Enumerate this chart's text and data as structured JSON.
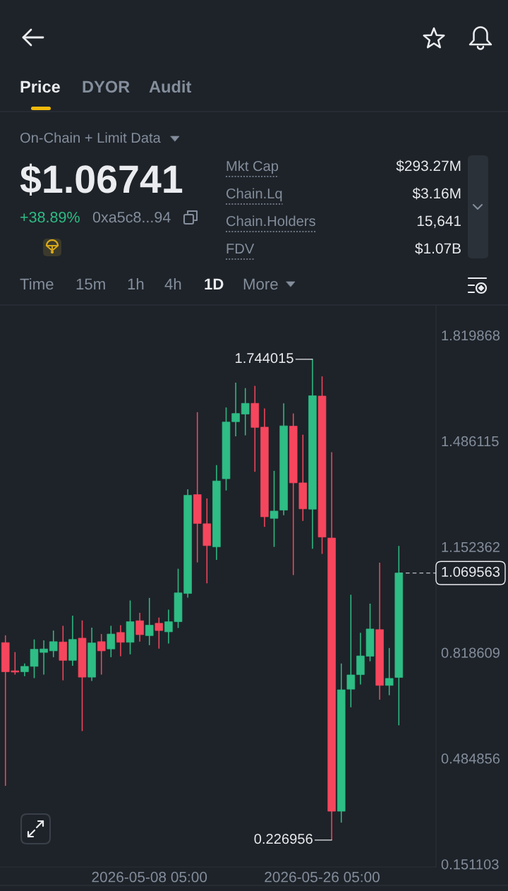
{
  "chart_data": {
    "type": "candlestick",
    "x": [
      "2026-04-23T05:00",
      "2026-04-24T05:00",
      "2026-04-25T05:00",
      "2026-04-26T05:00",
      "2026-04-27T05:00",
      "2026-04-28T05:00",
      "2026-04-29T05:00",
      "2026-04-30T05:00",
      "2026-05-01T05:00",
      "2026-05-02T05:00",
      "2026-05-03T05:00",
      "2026-05-04T05:00",
      "2026-05-05T05:00",
      "2026-05-06T05:00",
      "2026-05-07T05:00",
      "2026-05-08T05:00",
      "2026-05-09T05:00",
      "2026-05-10T05:00",
      "2026-05-11T05:00",
      "2026-05-12T05:00",
      "2026-05-13T05:00",
      "2026-05-14T05:00",
      "2026-05-15T05:00",
      "2026-05-16T05:00",
      "2026-05-17T05:00",
      "2026-05-18T05:00",
      "2026-05-19T05:00",
      "2026-05-20T05:00",
      "2026-05-21T05:00",
      "2026-05-22T05:00",
      "2026-05-23T05:00",
      "2026-05-24T05:00",
      "2026-05-25T05:00",
      "2026-05-26T05:00",
      "2026-05-27T05:00",
      "2026-05-28T05:00",
      "2026-05-29T05:00",
      "2026-05-30T05:00",
      "2026-05-31T05:00",
      "2026-06-01T05:00",
      "2026-06-02T05:00",
      "2026-06-03T05:00"
    ],
    "ohlc": [
      [
        0.85,
        0.873,
        0.398,
        0.758
      ],
      [
        0.761,
        0.82,
        0.749,
        0.757
      ],
      [
        0.758,
        0.784,
        0.744,
        0.775
      ],
      [
        0.775,
        0.86,
        0.738,
        0.829
      ],
      [
        0.819,
        0.857,
        0.749,
        0.83
      ],
      [
        0.824,
        0.888,
        0.804,
        0.853
      ],
      [
        0.852,
        0.903,
        0.731,
        0.794
      ],
      [
        0.794,
        0.935,
        0.777,
        0.86
      ],
      [
        0.864,
        0.92,
        0.571,
        0.741
      ],
      [
        0.741,
        0.897,
        0.729,
        0.849
      ],
      [
        0.853,
        0.877,
        0.749,
        0.824
      ],
      [
        0.83,
        0.903,
        0.804,
        0.877
      ],
      [
        0.882,
        0.905,
        0.807,
        0.851
      ],
      [
        0.851,
        0.983,
        0.813,
        0.916
      ],
      [
        0.919,
        0.944,
        0.853,
        0.875
      ],
      [
        0.872,
        0.991,
        0.842,
        0.905
      ],
      [
        0.911,
        0.929,
        0.831,
        0.888
      ],
      [
        0.884,
        0.954,
        0.847,
        0.916
      ],
      [
        0.916,
        1.083,
        0.896,
        1.007
      ],
      [
        1.005,
        1.334,
        0.992,
        1.315
      ],
      [
        1.317,
        1.577,
        1.103,
        1.226
      ],
      [
        1.225,
        1.305,
        1.037,
        1.156
      ],
      [
        1.152,
        1.41,
        1.111,
        1.36
      ],
      [
        1.367,
        1.592,
        1.33,
        1.546
      ],
      [
        1.547,
        1.67,
        1.501,
        1.573
      ],
      [
        1.571,
        1.653,
        1.504,
        1.605
      ],
      [
        1.605,
        1.66,
        1.389,
        1.529
      ],
      [
        1.53,
        1.589,
        1.215,
        1.247
      ],
      [
        1.242,
        1.392,
        1.152,
        1.265
      ],
      [
        1.268,
        1.605,
        1.252,
        1.534
      ],
      [
        1.533,
        1.573,
        1.063,
        1.354
      ],
      [
        1.354,
        1.506,
        1.234,
        1.272
      ],
      [
        1.271,
        1.744015,
        1.146,
        1.629
      ],
      [
        1.628,
        1.69,
        1.13,
        1.183
      ],
      [
        1.18,
        1.451,
        0.226956,
        0.318
      ],
      [
        0.318,
        0.784,
        0.282,
        0.701
      ],
      [
        0.703,
        1.001,
        0.646,
        0.748
      ],
      [
        0.749,
        0.881,
        0.718,
        0.808
      ],
      [
        0.807,
        0.973,
        0.791,
        0.893
      ],
      [
        0.891,
        1.102,
        0.67,
        0.715
      ],
      [
        0.715,
        0.833,
        0.684,
        0.737
      ],
      [
        0.74,
        1.155,
        0.589,
        1.069563
      ]
    ],
    "colors": [
      "#f6465d",
      "#f6465d",
      "#2ebd85",
      "#2ebd85",
      "#2ebd85",
      "#2ebd85",
      "#f6465d",
      "#2ebd85",
      "#f6465d",
      "#2ebd85",
      "#f6465d",
      "#2ebd85",
      "#f6465d",
      "#2ebd85",
      "#f6465d",
      "#2ebd85",
      "#f6465d",
      "#2ebd85",
      "#2ebd85",
      "#2ebd85",
      "#f6465d",
      "#f6465d",
      "#2ebd85",
      "#2ebd85",
      "#2ebd85",
      "#2ebd85",
      "#f6465d",
      "#f6465d",
      "#2ebd85",
      "#2ebd85",
      "#f6465d",
      "#f6465d",
      "#2ebd85",
      "#f6465d",
      "#f6465d",
      "#2ebd85",
      "#2ebd85",
      "#2ebd85",
      "#2ebd85",
      "#f6465d",
      "#2ebd85",
      "#2ebd85"
    ],
    "xlim": [
      "2026-04-22T15:24",
      "2026-06-07T02:00"
    ],
    "ylim": [
      0.142,
      1.913
    ],
    "xticks": [
      {
        "value": "2026-05-08T05:00",
        "label": "2026-05-08 05:00"
      },
      {
        "value": "2026-05-26T05:00",
        "label": "2026-05-26 05:00"
      }
    ],
    "yticks": [
      1.819868,
      1.486115,
      1.152362,
      0.818609,
      0.484856,
      0.151103
    ],
    "grid": false,
    "ref_lines": [
      {
        "axis": "y",
        "value": 1.069563,
        "label": "1.069563",
        "color": "#b7bdc6",
        "line_style": "dashed"
      }
    ],
    "annotations": [
      "Price",
      "DYOR",
      "Audit",
      "On-Chain + Limit Data",
      "$1.06741",
      "+38.89%",
      "0xa5c8...94",
      "Mkt Cap",
      "$293.27M",
      "Chain.Lq",
      "$3.16M",
      "Chain.Holders",
      "15,641",
      "FDV",
      "$1.07B",
      "Time",
      "15m",
      "1h",
      "4h",
      "1D",
      "More",
      {
        "text": "1.744015",
        "x": "2026-05-25T05:00",
        "y": 1.744015
      },
      {
        "text": "0.226956",
        "x": "2026-05-27T05:00",
        "y": 0.226956
      }
    ]
  }
}
